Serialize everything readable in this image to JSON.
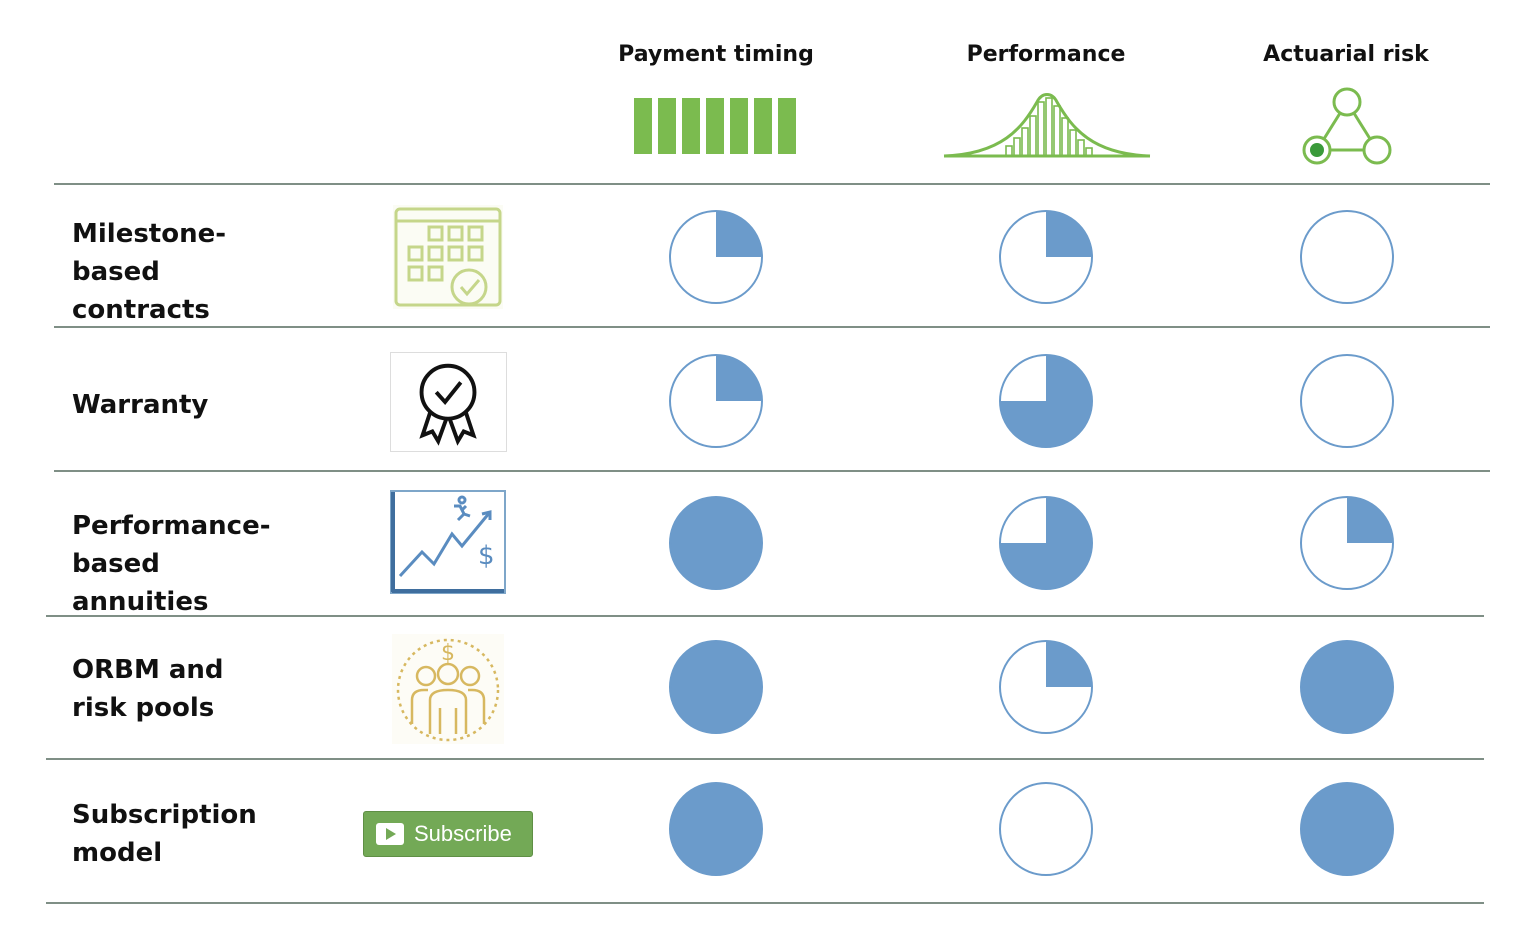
{
  "columns": [
    {
      "label": "Payment timing",
      "icon": "payment-bars-icon"
    },
    {
      "label": "Performance",
      "icon": "bell-curve-icon"
    },
    {
      "label": "Actuarial risk",
      "icon": "triangle-nodes-icon"
    }
  ],
  "rows": [
    {
      "label": "Milestone-based contracts",
      "icon": "calendar-check-icon",
      "levels": [
        0.25,
        0.25,
        0
      ]
    },
    {
      "label": "Warranty",
      "icon": "award-ribbon-icon",
      "levels": [
        0.25,
        0.75,
        0
      ]
    },
    {
      "label": "Performance-based annuities",
      "icon": "growth-chart-icon",
      "levels": [
        1,
        0.75,
        0.25
      ]
    },
    {
      "label": "ORBM and risk pools",
      "icon": "people-pool-icon",
      "levels": [
        1,
        0.25,
        1
      ]
    },
    {
      "label": "Subscription model",
      "icon": "subscribe-button-icon",
      "levels": [
        1,
        0,
        1
      ],
      "button_text": "Subscribe"
    }
  ],
  "colors": {
    "fill": "#6b9bcb",
    "stroke": "#6b9bcb",
    "accent_green": "#7bbb4f",
    "rule": "#7f8f86"
  }
}
